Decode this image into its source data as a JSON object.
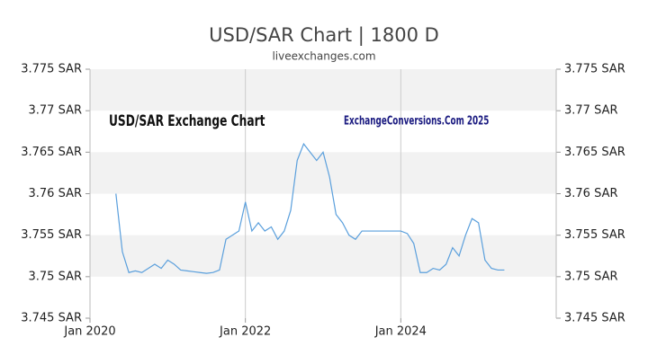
{
  "chart_data": {
    "type": "line",
    "title": "USD/SAR Chart | 1800 D",
    "subtitle": "liveexchanges.com",
    "annotations": [
      "USD/SAR Exchange Chart",
      "ExchangeConversions.Com 2025"
    ],
    "x": [
      "2020-05",
      "2020-06",
      "2020-07",
      "2020-08",
      "2020-09",
      "2020-10",
      "2020-11",
      "2020-12",
      "2021-01",
      "2021-02",
      "2021-03",
      "2021-04",
      "2021-05",
      "2021-06",
      "2021-07",
      "2021-08",
      "2021-09",
      "2021-10",
      "2021-11",
      "2021-12",
      "2022-01",
      "2022-02",
      "2022-03",
      "2022-04",
      "2022-05",
      "2022-06",
      "2022-07",
      "2022-08",
      "2022-09",
      "2022-10",
      "2022-11",
      "2022-12",
      "2023-01",
      "2023-02",
      "2023-03",
      "2023-04",
      "2023-05",
      "2023-06",
      "2023-07",
      "2023-08",
      "2023-09",
      "2023-10",
      "2023-11",
      "2023-12",
      "2024-01",
      "2024-02",
      "2024-03",
      "2024-04",
      "2024-05",
      "2024-06",
      "2024-07",
      "2024-08",
      "2024-09",
      "2024-10",
      "2024-11",
      "2024-12",
      "2025-01",
      "2025-02",
      "2025-03",
      "2025-04",
      "2025-05"
    ],
    "series": [
      {
        "name": "USD/SAR",
        "color": "#5a9fdc",
        "values": [
          3.76,
          3.753,
          3.7505,
          3.7507,
          3.7505,
          3.751,
          3.7515,
          3.751,
          3.752,
          3.7515,
          3.7508,
          3.7507,
          3.7506,
          3.7505,
          3.7504,
          3.7505,
          3.7508,
          3.7545,
          3.755,
          3.7555,
          3.759,
          3.7555,
          3.7565,
          3.7555,
          3.756,
          3.7545,
          3.7555,
          3.758,
          3.764,
          3.766,
          3.765,
          3.764,
          3.765,
          3.762,
          3.7575,
          3.7565,
          3.755,
          3.7545,
          3.7555,
          3.7555,
          3.7555,
          3.7555,
          3.7555,
          3.7555,
          3.7555,
          3.7552,
          3.754,
          3.7505,
          3.7505,
          3.751,
          3.7508,
          3.7515,
          3.7535,
          3.7525,
          3.755,
          3.757,
          3.7565,
          3.752,
          3.751,
          3.7508,
          3.7508
        ]
      }
    ],
    "xlim": [
      "2020-01",
      "2026-01"
    ],
    "xticks": [
      {
        "value": "2020-01",
        "label": "Jan 2020"
      },
      {
        "value": "2022-01",
        "label": "Jan 2022"
      },
      {
        "value": "2024-01",
        "label": "Jan 2024"
      }
    ],
    "ylim": [
      3.745,
      3.775
    ],
    "yticks": [
      {
        "value": 3.745,
        "label": "3.745 SAR"
      },
      {
        "value": 3.75,
        "label": "3.75 SAR"
      },
      {
        "value": 3.755,
        "label": "3.755 SAR"
      },
      {
        "value": 3.76,
        "label": "3.76 SAR"
      },
      {
        "value": 3.765,
        "label": "3.765 SAR"
      },
      {
        "value": 3.77,
        "label": "3.77 SAR"
      },
      {
        "value": 3.775,
        "label": "3.775 SAR"
      }
    ],
    "grid": true
  }
}
